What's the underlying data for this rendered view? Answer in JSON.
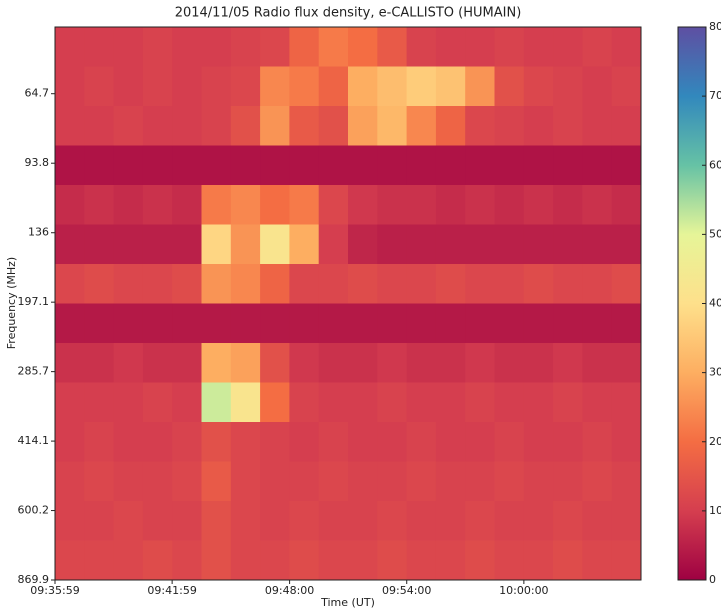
{
  "chart_data": {
    "type": "heatmap",
    "title": "2014/11/05  Radio flux density, e-CALLISTO (HUMAIN)",
    "xlabel": "Time (UT)",
    "ylabel": "Frequency (MHz)",
    "xlim": [
      34559,
      36360
    ],
    "xticks": [
      {
        "value": 34559,
        "label": "09:35:59"
      },
      {
        "value": 34919,
        "label": "09:41:59"
      },
      {
        "value": 35280,
        "label": "09:48:00"
      },
      {
        "value": 35640,
        "label": "09:54:00"
      },
      {
        "value": 36000,
        "label": "10:00:00"
      }
    ],
    "ylim": [
      869.9,
      45.3
    ],
    "ylog": true,
    "yticks": [
      64.7,
      93.8,
      136.0,
      197.1,
      285.7,
      414.1,
      600.2,
      869.9
    ],
    "colors": [
      "#9e0142",
      "#d53e4f",
      "#f46d43",
      "#fdae61",
      "#fee08b",
      "#e6f598",
      "#66c2a5",
      "#3288bd",
      "#5e4fa2"
    ],
    "clim": [
      0,
      80
    ],
    "cticks": [
      0,
      10,
      20,
      30,
      40,
      50,
      60,
      70,
      80
    ],
    "z": [
      [
        10,
        10,
        10,
        11,
        10,
        10,
        11,
        12,
        18,
        22,
        20,
        16,
        11,
        10,
        10,
        11,
        10,
        10,
        11,
        10
      ],
      [
        10,
        11,
        10,
        11,
        10,
        11,
        12,
        24,
        22,
        18,
        30,
        33,
        36,
        34,
        26,
        14,
        12,
        11,
        10,
        11
      ],
      [
        10,
        10,
        11,
        10,
        10,
        11,
        14,
        26,
        16,
        14,
        28,
        32,
        24,
        18,
        12,
        11,
        10,
        11,
        10,
        10
      ],
      [
        3,
        3,
        3,
        3,
        3,
        3,
        3,
        3,
        3,
        3,
        3,
        3,
        3,
        3,
        3,
        3,
        3,
        3,
        3,
        3
      ],
      [
        7,
        8,
        7,
        8,
        7,
        22,
        24,
        20,
        22,
        12,
        9,
        8,
        8,
        7,
        8,
        7,
        8,
        7,
        8,
        7
      ],
      [
        5,
        5,
        5,
        5,
        5,
        38,
        26,
        42,
        30,
        10,
        6,
        5,
        5,
        5,
        5,
        5,
        5,
        5,
        5,
        5
      ],
      [
        12,
        13,
        12,
        12,
        13,
        26,
        24,
        18,
        12,
        12,
        13,
        12,
        12,
        13,
        12,
        12,
        13,
        12,
        12,
        13
      ],
      [
        4,
        4,
        4,
        4,
        4,
        4,
        4,
        4,
        4,
        4,
        4,
        4,
        4,
        4,
        4,
        4,
        4,
        4,
        4,
        4
      ],
      [
        8,
        8,
        9,
        8,
        8,
        30,
        28,
        14,
        9,
        8,
        8,
        9,
        8,
        8,
        9,
        8,
        8,
        9,
        8,
        8
      ],
      [
        10,
        10,
        10,
        11,
        10,
        52,
        42,
        20,
        11,
        10,
        10,
        11,
        10,
        10,
        11,
        10,
        10,
        11,
        10,
        10
      ],
      [
        10,
        11,
        10,
        10,
        11,
        14,
        12,
        11,
        10,
        11,
        10,
        10,
        11,
        10,
        10,
        11,
        10,
        10,
        11,
        10
      ],
      [
        11,
        12,
        11,
        11,
        12,
        16,
        12,
        11,
        11,
        12,
        11,
        11,
        12,
        11,
        11,
        12,
        11,
        11,
        12,
        11
      ],
      [
        11,
        11,
        12,
        11,
        11,
        14,
        12,
        11,
        12,
        11,
        11,
        12,
        11,
        11,
        12,
        11,
        11,
        12,
        11,
        11
      ],
      [
        12,
        12,
        12,
        13,
        12,
        14,
        12,
        12,
        13,
        12,
        12,
        13,
        12,
        12,
        13,
        12,
        12,
        13,
        12,
        12
      ]
    ]
  }
}
